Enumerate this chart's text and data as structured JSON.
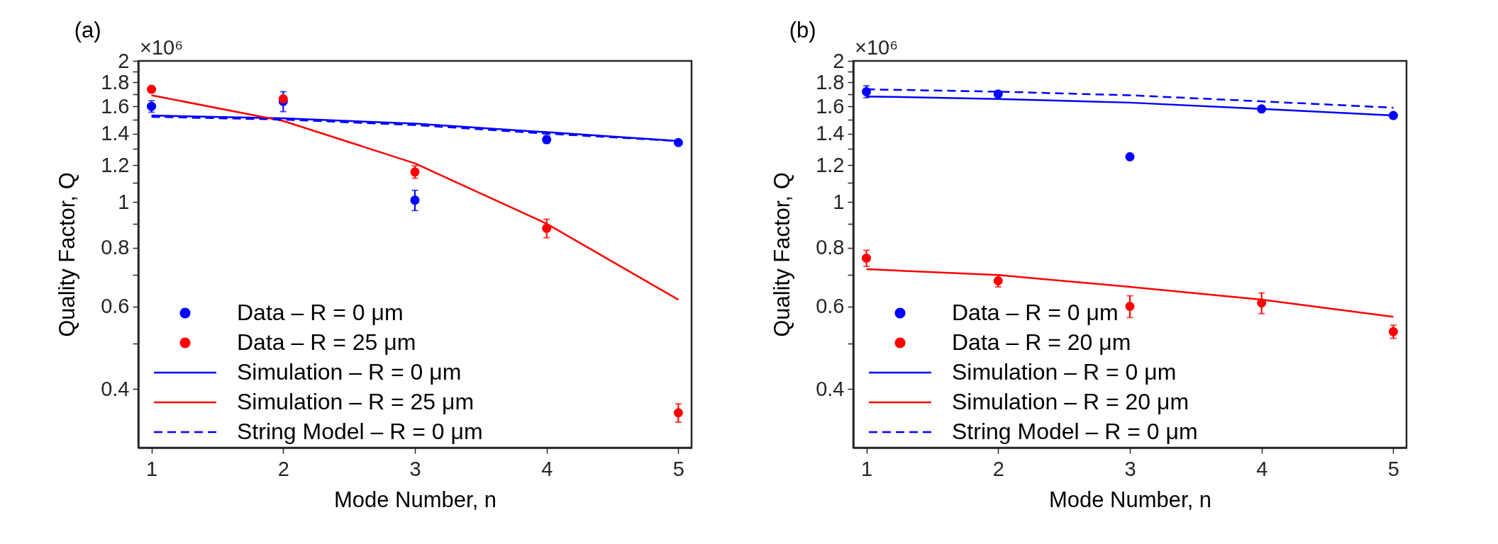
{
  "chart_data": [
    {
      "type": "line",
      "title": "(a)",
      "xlabel": "Mode Number, n",
      "ylabel": "Quality Factor, Q",
      "annotations": [
        "×10⁶"
      ],
      "x": [
        1,
        2,
        3,
        4,
        5
      ],
      "series": [
        {
          "name": "Data – R = 0 μm",
          "type": "scatter",
          "marker": "circle",
          "color": "#0000ff",
          "values": [
            1.6,
            1.64,
            1.01,
            1.36,
            1.34
          ],
          "errors": [
            0.045,
            0.08,
            0.05,
            0.025,
            null
          ]
        },
        {
          "name": "Data – R = 25 μm",
          "type": "scatter",
          "marker": "circle",
          "color": "#ff0000",
          "values": [
            1.74,
            1.66,
            1.16,
            0.88,
            0.356
          ],
          "errors": [
            null,
            null,
            0.035,
            0.04,
            0.016
          ]
        },
        {
          "name": "Simulation – R = 0 μm",
          "line_style": "solid",
          "color": "#0000ff",
          "values": [
            1.53,
            1.51,
            1.47,
            1.41,
            1.35
          ]
        },
        {
          "name": "Simulation – R = 25 μm",
          "line_style": "solid",
          "color": "#ff0000",
          "values": [
            1.69,
            1.49,
            1.21,
            0.9,
            0.62
          ]
        },
        {
          "name": "String Model – R = 0 μm",
          "line_style": "dashed",
          "color": "#0000ff",
          "values": [
            1.52,
            1.5,
            1.46,
            1.4,
            1.35
          ]
        }
      ],
      "xlim": [
        0.9,
        5.1
      ],
      "xticks": [
        1,
        2,
        3,
        4,
        5
      ],
      "ylim": [
        0.3,
        2
      ],
      "yticks": [
        0.4,
        {
          "value": 0.5,
          "label": null
        },
        0.6,
        {
          "value": 0.7,
          "label": null
        },
        0.8,
        {
          "value": 0.9,
          "label": null
        },
        1,
        {
          "value": 1.1,
          "label": null
        },
        1.2,
        {
          "value": 1.3,
          "label": null
        },
        1.4,
        {
          "value": 1.5,
          "label": null
        },
        1.6,
        {
          "value": 1.7,
          "label": null
        },
        1.8,
        {
          "value": 1.9,
          "label": null
        },
        2
      ],
      "log": true,
      "legend": "bottom left"
    },
    {
      "type": "line",
      "title": "(b)",
      "xlabel": "Mode Number, n",
      "ylabel": "Quality Factor, Q",
      "annotations": [
        "×10⁶"
      ],
      "x": [
        1,
        2,
        3,
        4,
        5
      ],
      "series": [
        {
          "name": "Data – R = 0 μm",
          "type": "scatter",
          "marker": "circle",
          "color": "#0000ff",
          "values": [
            1.72,
            1.7,
            1.25,
            1.58,
            1.53
          ],
          "errors": [
            0.05,
            null,
            null,
            null,
            null
          ]
        },
        {
          "name": "Data – R = 20 μm",
          "type": "scatter",
          "marker": "circle",
          "color": "#ff0000",
          "values": [
            0.76,
            0.68,
            0.6,
            0.61,
            0.53
          ],
          "errors": [
            0.03,
            0.02,
            0.032,
            0.031,
            0.017
          ]
        },
        {
          "name": "Simulation – R = 0 μm",
          "line_style": "solid",
          "color": "#0000ff",
          "values": [
            1.68,
            1.66,
            1.63,
            1.58,
            1.53
          ]
        },
        {
          "name": "Simulation – R = 20 μm",
          "line_style": "solid",
          "color": "#ff0000",
          "values": [
            0.72,
            0.7,
            0.66,
            0.62,
            0.57
          ]
        },
        {
          "name": "String Model – R = 0 μm",
          "line_style": "dashed",
          "color": "#0000ff",
          "values": [
            1.74,
            1.72,
            1.69,
            1.64,
            1.59
          ]
        }
      ],
      "xlim": [
        0.9,
        5.1
      ],
      "xticks": [
        1,
        2,
        3,
        4,
        5
      ],
      "ylim": [
        0.3,
        2
      ],
      "yticks": [
        0.4,
        {
          "value": 0.5,
          "label": null
        },
        0.6,
        {
          "value": 0.7,
          "label": null
        },
        0.8,
        {
          "value": 0.9,
          "label": null
        },
        1,
        {
          "value": 1.1,
          "label": null
        },
        1.2,
        {
          "value": 1.3,
          "label": null
        },
        1.4,
        {
          "value": 1.5,
          "label": null
        },
        1.6,
        {
          "value": 1.7,
          "label": null
        },
        1.8,
        {
          "value": 1.9,
          "label": null
        },
        2
      ],
      "log": true,
      "legend": "bottom left"
    }
  ]
}
